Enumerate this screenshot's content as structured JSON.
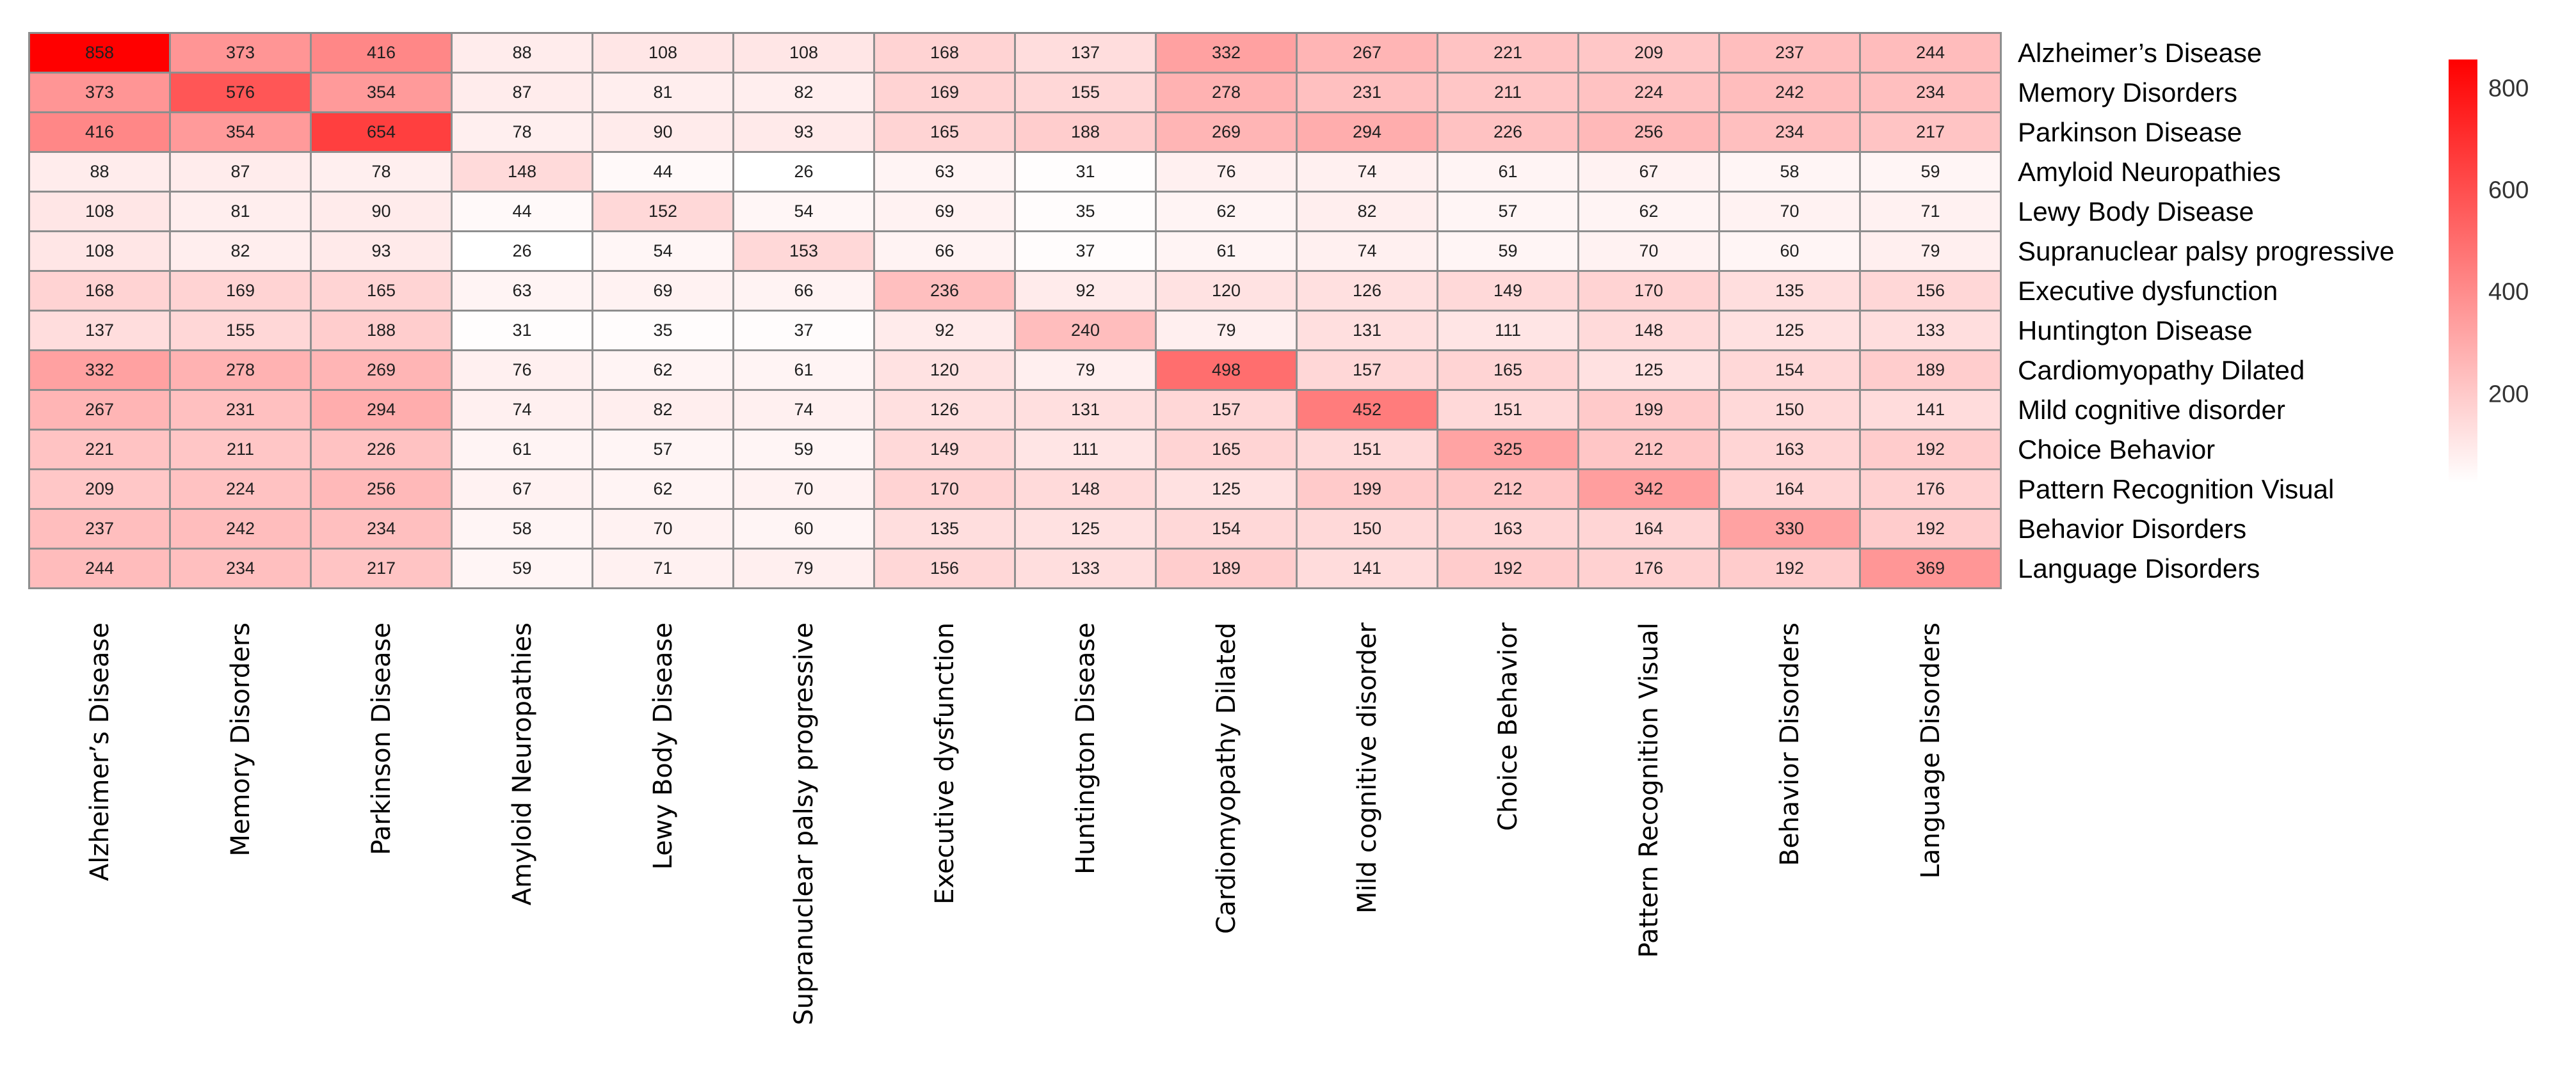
{
  "chart_data": {
    "type": "heatmap",
    "title": "",
    "labels": [
      "Alzheimer’s Disease",
      "Memory Disorders",
      "Parkinson Disease",
      "Amyloid Neuropathies",
      "Lewy Body Disease",
      "Supranuclear palsy progressive",
      "Executive dysfunction",
      "Huntington Disease",
      "Cardiomyopathy Dilated",
      "Mild cognitive disorder",
      "Choice Behavior",
      "Pattern Recognition Visual",
      "Behavior Disorders",
      "Language Disorders"
    ],
    "matrix": [
      [
        858,
        373,
        416,
        88,
        108,
        108,
        168,
        137,
        332,
        267,
        221,
        209,
        237,
        244
      ],
      [
        373,
        576,
        354,
        87,
        81,
        82,
        169,
        155,
        278,
        231,
        211,
        224,
        242,
        234
      ],
      [
        416,
        354,
        654,
        78,
        90,
        93,
        165,
        188,
        269,
        294,
        226,
        256,
        234,
        217
      ],
      [
        88,
        87,
        78,
        148,
        44,
        26,
        63,
        31,
        76,
        74,
        61,
        67,
        58,
        59
      ],
      [
        108,
        81,
        90,
        44,
        152,
        54,
        69,
        35,
        62,
        82,
        57,
        62,
        70,
        71
      ],
      [
        108,
        82,
        93,
        26,
        54,
        153,
        66,
        37,
        61,
        74,
        59,
        70,
        60,
        79
      ],
      [
        168,
        169,
        165,
        63,
        69,
        66,
        236,
        92,
        120,
        126,
        149,
        170,
        135,
        156
      ],
      [
        137,
        155,
        188,
        31,
        35,
        37,
        92,
        240,
        79,
        131,
        111,
        148,
        125,
        133
      ],
      [
        332,
        278,
        269,
        76,
        62,
        61,
        120,
        79,
        498,
        157,
        165,
        125,
        154,
        189
      ],
      [
        267,
        231,
        294,
        74,
        82,
        74,
        126,
        131,
        157,
        452,
        151,
        199,
        150,
        141
      ],
      [
        221,
        211,
        226,
        61,
        57,
        59,
        149,
        111,
        165,
        151,
        325,
        212,
        163,
        192
      ],
      [
        209,
        224,
        256,
        67,
        62,
        70,
        170,
        148,
        125,
        199,
        212,
        342,
        164,
        176
      ],
      [
        237,
        242,
        234,
        58,
        70,
        60,
        135,
        125,
        154,
        150,
        163,
        164,
        330,
        192
      ],
      [
        244,
        234,
        217,
        59,
        71,
        79,
        156,
        133,
        189,
        141,
        192,
        176,
        192,
        369
      ]
    ],
    "colorbar": {
      "ticks": [
        800,
        600,
        400,
        200
      ],
      "vmin": 26,
      "vmax": 858,
      "color_high": "#ff0000",
      "color_low": "#ffffff"
    },
    "grid_line_color": "#8e8e8e",
    "value_text_color": "#1f1f1f",
    "legend_position": "right",
    "grid": true
  }
}
